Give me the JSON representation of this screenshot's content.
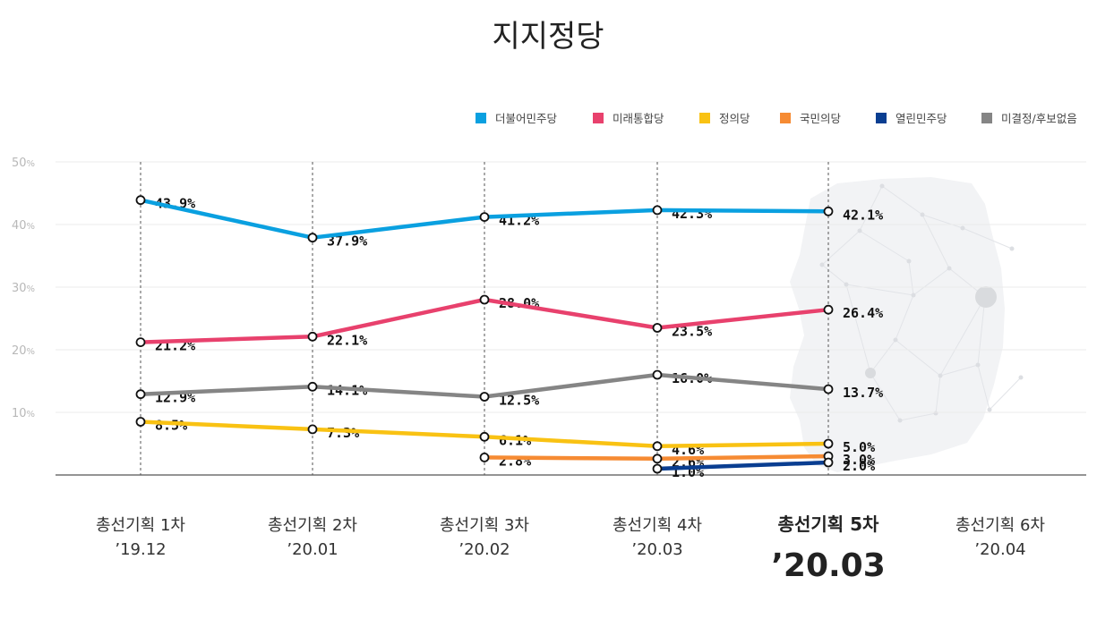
{
  "chart_data": {
    "type": "line",
    "title": "지지정당",
    "categories": [
      "총선기획 1차",
      "총선기획 2차",
      "총선기획 3차",
      "총선기획 4차",
      "총선기획 5차",
      "총선기획 6차"
    ],
    "category_dates": [
      "’19.12",
      "’20.01",
      "’20.02",
      "’20.03",
      "’20.03",
      "’20.04"
    ],
    "highlight_index": 4,
    "ylim": [
      0,
      50
    ],
    "yticks": [
      10,
      20,
      30,
      40,
      50
    ],
    "ytick_unit": "%",
    "legend_position": "top-right",
    "grid": true,
    "series": [
      {
        "name": "더불어민주당",
        "color": "#0aa0e0",
        "values": [
          43.9,
          37.9,
          41.2,
          42.3,
          42.1,
          null
        ],
        "labels": [
          "43.9%",
          "37.9%",
          "41.2%",
          "42.3%",
          "42.1%",
          ""
        ]
      },
      {
        "name": "미래통합당",
        "color": "#e8416d",
        "values": [
          21.2,
          22.1,
          28.0,
          23.5,
          26.4,
          null
        ],
        "labels": [
          "21.2%",
          "22.1%",
          "28.0%",
          "23.5%",
          "26.4%",
          ""
        ]
      },
      {
        "name": "정의당",
        "color": "#f9c213",
        "values": [
          8.5,
          7.3,
          6.1,
          4.6,
          5.0,
          null
        ],
        "labels": [
          "8.5%",
          "7.3%",
          "6.1%",
          "4.6%",
          "5.0%",
          ""
        ]
      },
      {
        "name": "국민의당",
        "color": "#f68b33",
        "values": [
          null,
          null,
          2.8,
          2.6,
          3.0,
          null
        ],
        "labels": [
          "",
          "",
          "2.8%",
          "2.6%",
          "3.0%",
          ""
        ]
      },
      {
        "name": "열린민주당",
        "color": "#0a3e91",
        "values": [
          null,
          null,
          null,
          1.0,
          2.0,
          null
        ],
        "labels": [
          "",
          "",
          "",
          "1.0%",
          "2.0%",
          ""
        ]
      },
      {
        "name": "미결정/후보없음",
        "color": "#858585",
        "values": [
          12.9,
          14.1,
          12.5,
          16.0,
          13.7,
          null
        ],
        "labels": [
          "12.9%",
          "14.1%",
          "12.5%",
          "16.0%",
          "13.7%",
          ""
        ]
      }
    ]
  }
}
